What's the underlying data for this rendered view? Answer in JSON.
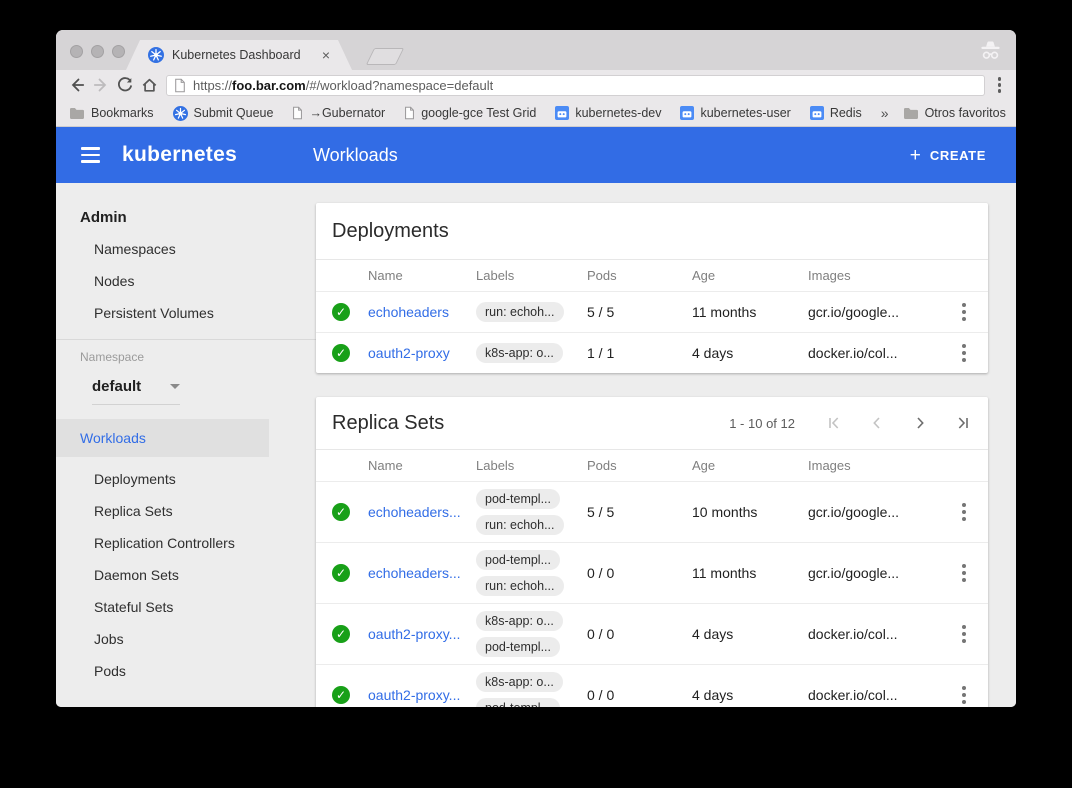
{
  "browser": {
    "tab_title": "Kubernetes Dashboard",
    "tab_close": "×",
    "url_scheme": "https://",
    "url_domain": "foo.bar.com",
    "url_path": "/#/workload?namespace=default",
    "overflow_symbol": "»",
    "bookmarks": [
      {
        "label": "Bookmarks",
        "icon": "folder-icon"
      },
      {
        "label": "Submit Queue",
        "icon": "kubernetes-icon"
      },
      {
        "label": "→Gubernator",
        "icon": "page-icon"
      },
      {
        "label": "google-gce Test Grid",
        "icon": "page-icon"
      },
      {
        "label": "kubernetes-dev",
        "icon": "groups-icon"
      },
      {
        "label": "kubernetes-user",
        "icon": "groups-icon"
      },
      {
        "label": "Redis",
        "icon": "groups-icon"
      }
    ],
    "bookmarks_right": [
      {
        "label": "Otros favoritos",
        "icon": "folder-icon"
      }
    ]
  },
  "header": {
    "brand": "kubernetes",
    "page_title": "Workloads",
    "create_plus": "+",
    "create_label": "CREATE"
  },
  "sidebar": {
    "admin_label": "Admin",
    "admin_items": [
      "Namespaces",
      "Nodes",
      "Persistent Volumes"
    ],
    "namespace_label": "Namespace",
    "namespace_value": "default",
    "workloads_label": "Workloads",
    "workload_items": [
      "Deployments",
      "Replica Sets",
      "Replication Controllers",
      "Daemon Sets",
      "Stateful Sets",
      "Jobs",
      "Pods"
    ]
  },
  "deployments_card": {
    "title": "Deployments",
    "columns": [
      "Name",
      "Labels",
      "Pods",
      "Age",
      "Images"
    ],
    "rows": [
      {
        "name": "echoheaders",
        "labels": [
          "run: echoh..."
        ],
        "pods": "5 / 5",
        "age": "11 months",
        "images": "gcr.io/google..."
      },
      {
        "name": "oauth2-proxy",
        "labels": [
          "k8s-app: o..."
        ],
        "pods": "1 / 1",
        "age": "4 days",
        "images": "docker.io/col..."
      }
    ]
  },
  "replicasets_card": {
    "title": "Replica Sets",
    "pagination": "1 - 10 of 12",
    "columns": [
      "Name",
      "Labels",
      "Pods",
      "Age",
      "Images"
    ],
    "rows": [
      {
        "name": "echoheaders...",
        "labels": [
          "pod-templ...",
          "run: echoh..."
        ],
        "pods": "5 / 5",
        "age": "10 months",
        "images": "gcr.io/google..."
      },
      {
        "name": "echoheaders...",
        "labels": [
          "pod-templ...",
          "run: echoh..."
        ],
        "pods": "0 / 0",
        "age": "11 months",
        "images": "gcr.io/google..."
      },
      {
        "name": "oauth2-proxy...",
        "labels": [
          "k8s-app: o...",
          "pod-templ..."
        ],
        "pods": "0 / 0",
        "age": "4 days",
        "images": "docker.io/col..."
      },
      {
        "name": "oauth2-proxy...",
        "labels": [
          "k8s-app: o...",
          "pod-templ..."
        ],
        "pods": "0 / 0",
        "age": "4 days",
        "images": "docker.io/col..."
      }
    ]
  },
  "colors": {
    "header_blue": "#326ce5",
    "link_blue": "#326de6",
    "success_green": "#18a018",
    "selected_item_bg": "#e0e0e0"
  }
}
